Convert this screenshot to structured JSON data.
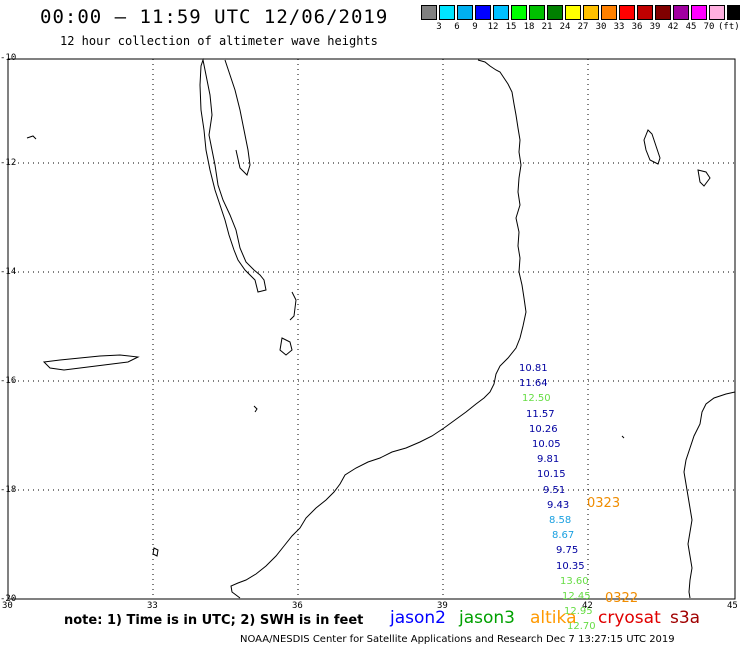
{
  "header": {
    "title": "00:00 – 11:59 UTC 12/06/2019",
    "subtitle": "12 hour collection of altimeter wave heights"
  },
  "scale": {
    "colors": [
      "#808080",
      "#00e5ff",
      "#00b0f0",
      "#0000ff",
      "#00c0ff",
      "#00ff00",
      "#00c000",
      "#008000",
      "#ffff00",
      "#ffc000",
      "#ff8000",
      "#ff0000",
      "#c00000",
      "#800000",
      "#a000a0",
      "#ff00ff",
      "#ffb0e0",
      "#000000"
    ],
    "labels": [
      "3",
      "6",
      "9",
      "12",
      "15",
      "18",
      "21",
      "24",
      "27",
      "30",
      "33",
      "36",
      "39",
      "42",
      "45",
      "70",
      "(ft)"
    ]
  },
  "axes": {
    "lat_labels": [
      "-10",
      "-12",
      "-14",
      "-16",
      "-18",
      "-20"
    ],
    "lon_labels": [
      "30",
      "33",
      "36",
      "39",
      "42",
      "45"
    ]
  },
  "wave_heights": [
    {
      "value": "10.81",
      "color": "#0000a0"
    },
    {
      "value": "11.64",
      "color": "#0000a0"
    },
    {
      "value": "12.50",
      "color": "#66dd44"
    },
    {
      "value": "11.57",
      "color": "#0000a0"
    },
    {
      "value": "10.26",
      "color": "#0000a0"
    },
    {
      "value": "10.05",
      "color": "#0000a0"
    },
    {
      "value": "9.81",
      "color": "#0000a0"
    },
    {
      "value": "10.15",
      "color": "#0000a0"
    },
    {
      "value": "9.51",
      "color": "#0000a0"
    },
    {
      "value": "9.43",
      "color": "#0000a0"
    },
    {
      "value": "8.58",
      "color": "#1aa0e0"
    },
    {
      "value": "8.67",
      "color": "#1aa0e0"
    },
    {
      "value": "9.75",
      "color": "#0000a0"
    },
    {
      "value": "10.35",
      "color": "#0000a0"
    },
    {
      "value": "13.60",
      "color": "#66dd44"
    },
    {
      "value": "12.45",
      "color": "#66dd44"
    },
    {
      "value": "12.95",
      "color": "#66dd44"
    },
    {
      "value": "12.70",
      "color": "#66dd44"
    }
  ],
  "track_labels": [
    "0323",
    "0322"
  ],
  "note": "note: 1) Time is in UTC; 2) SWH is in feet",
  "legend": [
    {
      "name": "jason2",
      "color": "#0000ff"
    },
    {
      "name": "jason3",
      "color": "#00a000"
    },
    {
      "name": "altika",
      "color": "#ff9900"
    },
    {
      "name": "cryosat",
      "color": "#e00000"
    },
    {
      "name": "s3a",
      "color": "#a00000"
    }
  ],
  "footer": "NOAA/NESDIS Center for Satellite Applications and Research   Dec  7 13:27:15 UTC 2019"
}
